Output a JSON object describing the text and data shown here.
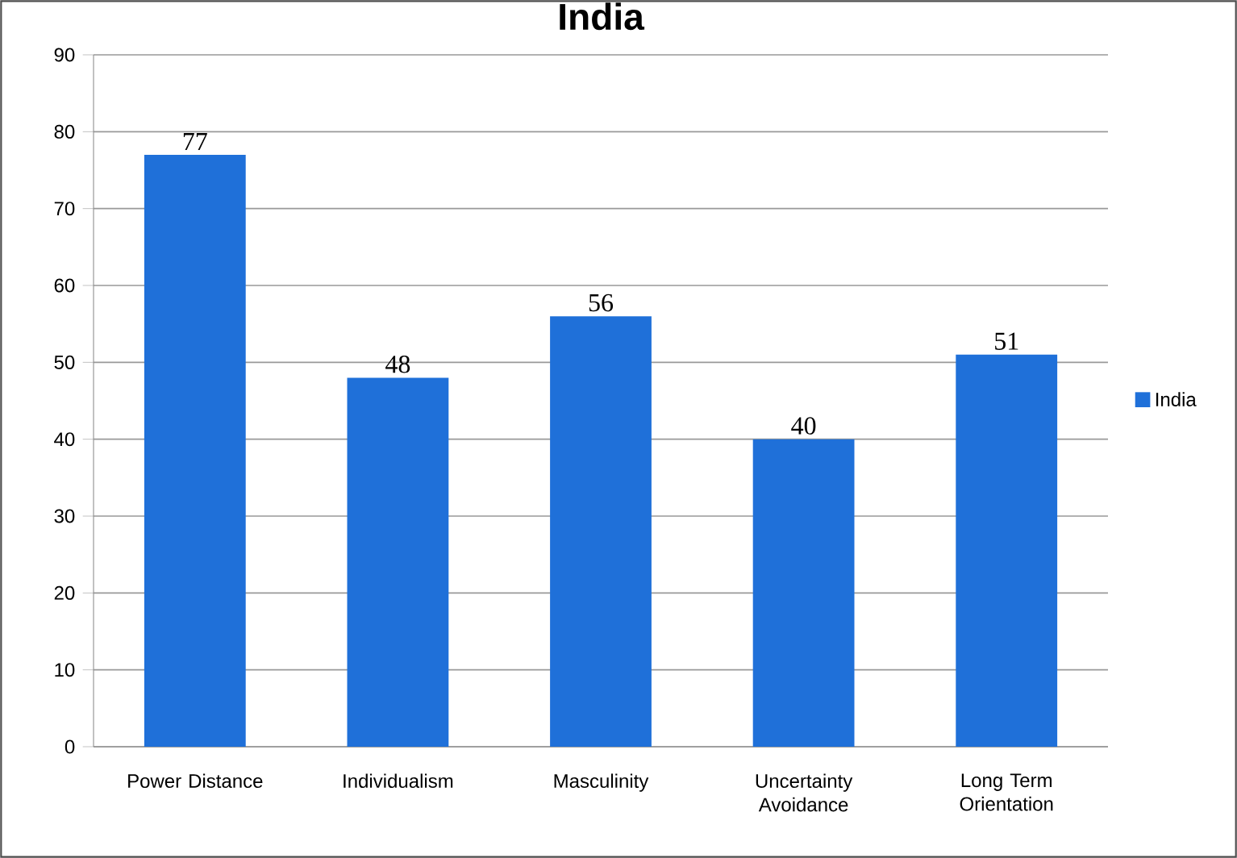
{
  "chart_data": {
    "type": "bar",
    "title": "India",
    "categories": [
      "Power Distance",
      "Individualism",
      "Masculinity",
      "Uncertainty Avoidance",
      "Long Term Orientation"
    ],
    "series": [
      {
        "name": "India",
        "color": "#1f70d9",
        "values": [
          77,
          48,
          56,
          40,
          51
        ]
      }
    ],
    "ylim": [
      0,
      90
    ],
    "yticks": [
      0,
      10,
      20,
      30,
      40,
      50,
      60,
      70,
      80,
      90
    ],
    "grid": "y",
    "legend": "right",
    "data_labels": true
  }
}
